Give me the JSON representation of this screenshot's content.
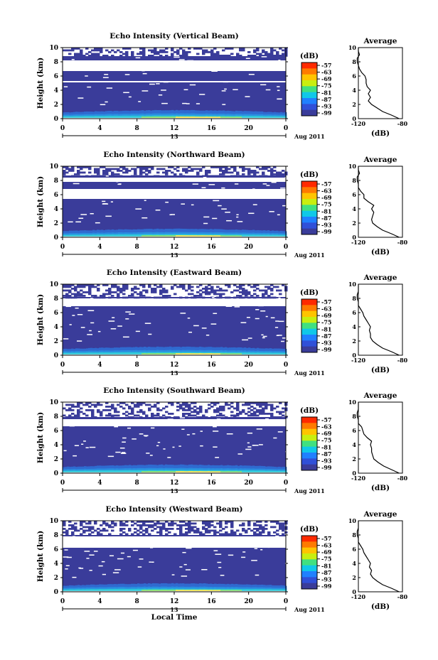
{
  "figure": {
    "date_label": "Aug 2011",
    "date_marker_label": "13",
    "xlabel_bottom": "Local Time",
    "colorbar_unit": "(dB)",
    "colorbar_ticks": [
      "-57",
      "-63",
      "-69",
      "-75",
      "-81",
      "-87",
      "-93",
      "-99"
    ],
    "colorbar_colors": [
      "#ff2a00",
      "#ff7a00",
      "#ffc400",
      "#c8ee10",
      "#40e080",
      "#10c8e8",
      "#2080ff",
      "#3050d8",
      "#3a3c9a"
    ],
    "main_xticks": [
      "0",
      "4",
      "8",
      "12",
      "16",
      "20",
      "0"
    ],
    "main_yticks": [
      "0",
      "2",
      "4",
      "6",
      "8",
      "10"
    ],
    "main_ylabel": "Height (km)",
    "avg_title": "Average",
    "avg_xticks": [
      "-120",
      "-80"
    ],
    "avg_xlabel": "(dB)",
    "colors": {
      "low_echo": "#3a3c9a",
      "no_data": "#ffffff",
      "ground_echo": [
        "#2a8ee0",
        "#2cc8d8",
        "#8ae060",
        "#ffe640"
      ]
    }
  },
  "chart_data": [
    {
      "type": "heatmap",
      "title": "Echo Intensity (Vertical Beam)",
      "xlabel": "",
      "ylabel": "Height (km)",
      "xlim": [
        0,
        24
      ],
      "ylim": [
        0,
        10
      ],
      "clim": [
        -99,
        -57
      ],
      "gap_layers_km": [
        [
          5.1,
          5.3
        ],
        [
          6.7,
          8.2
        ]
      ],
      "top_layer_km": [
        8.8,
        10
      ],
      "profile": {
        "title": "Average",
        "xlabel": "(dB)",
        "xlim": [
          -120,
          -80
        ],
        "height_km": [
          0,
          0.5,
          1,
          1.5,
          2,
          2.5,
          3,
          3.5,
          4,
          4.5,
          5,
          5.5,
          6,
          6.5,
          7,
          7.5,
          8,
          8.5,
          9,
          9.5,
          10
        ],
        "db": [
          -83,
          -90,
          -98,
          -103,
          -108,
          -111,
          -109,
          -111,
          -109,
          -112,
          -113,
          -113,
          -114,
          -117,
          -119,
          -120,
          -121,
          -121,
          -119,
          -120,
          -120
        ]
      }
    },
    {
      "type": "heatmap",
      "title": "Echo Intensity (Northward Beam)",
      "xlabel": "",
      "ylabel": "Height (km)",
      "xlim": [
        0,
        24
      ],
      "ylim": [
        0,
        10
      ],
      "clim": [
        -99,
        -57
      ],
      "gap_layers_km": [
        [
          5.4,
          6.8
        ],
        [
          7.8,
          8.4
        ]
      ],
      "top_layer_km": [
        8.7,
        10
      ],
      "profile": {
        "title": "Average",
        "xlabel": "(dB)",
        "xlim": [
          -120,
          -80
        ],
        "height_km": [
          0,
          0.5,
          1,
          1.5,
          2,
          2.5,
          3,
          3.5,
          4,
          4.5,
          5,
          5.5,
          6,
          6.5,
          7,
          7.5,
          8,
          8.5,
          9,
          9.5,
          10
        ],
        "db": [
          -83,
          -90,
          -98,
          -103,
          -107,
          -108,
          -107,
          -106,
          -108,
          -106,
          -111,
          -115,
          -115,
          -118,
          -120,
          -120,
          -121,
          -121,
          -119,
          -120,
          -120
        ]
      }
    },
    {
      "type": "heatmap",
      "title": "Echo Intensity (Eastward Beam)",
      "xlabel": "",
      "ylabel": "Height (km)",
      "xlim": [
        0,
        24
      ],
      "ylim": [
        0,
        10
      ],
      "clim": [
        -99,
        -57
      ],
      "gap_layers_km": [
        [
          6.9,
          8.0
        ]
      ],
      "top_layer_km": [
        8.2,
        10
      ],
      "profile": {
        "title": "Average",
        "xlabel": "(dB)",
        "xlim": [
          -120,
          -80
        ],
        "height_km": [
          0,
          0.5,
          1,
          1.5,
          2,
          2.5,
          3,
          3.5,
          4,
          4.5,
          5,
          5.5,
          6,
          6.5,
          7,
          7.5,
          8,
          8.5,
          9,
          9.5,
          10
        ],
        "db": [
          -83,
          -90,
          -98,
          -103,
          -107,
          -109,
          -109,
          -110,
          -109,
          -111,
          -113,
          -115,
          -116,
          -118,
          -120,
          -120,
          -121,
          -121,
          -120,
          -120,
          -120
        ]
      }
    },
    {
      "type": "heatmap",
      "title": "Echo Intensity (Southward Beam)",
      "xlabel": "",
      "ylabel": "Height (km)",
      "xlim": [
        0,
        24
      ],
      "ylim": [
        0,
        10
      ],
      "clim": [
        -99,
        -57
      ],
      "gap_layers_km": [
        [
          6.6,
          7.6
        ]
      ],
      "top_layer_km": [
        7.9,
        10
      ],
      "profile": {
        "title": "Average",
        "xlabel": "(dB)",
        "xlim": [
          -120,
          -80
        ],
        "height_km": [
          0,
          0.5,
          1,
          1.5,
          2,
          2.5,
          3,
          3.5,
          4,
          4.5,
          5,
          5.5,
          6,
          6.5,
          7,
          7.5,
          8,
          8.5,
          9,
          9.5,
          10
        ],
        "db": [
          -83,
          -90,
          -97,
          -102,
          -106,
          -107,
          -108,
          -108,
          -109,
          -108,
          -112,
          -115,
          -116,
          -117,
          -120,
          -120,
          -121,
          -121,
          -120,
          -120,
          -120
        ]
      }
    },
    {
      "type": "heatmap",
      "title": "Echo Intensity (Westward Beam)",
      "xlabel": "Local Time",
      "ylabel": "Height (km)",
      "xlim": [
        0,
        24
      ],
      "ylim": [
        0,
        10
      ],
      "clim": [
        -99,
        -57
      ],
      "gap_layers_km": [
        [
          6.2,
          7.8
        ]
      ],
      "top_layer_km": [
        8.0,
        10
      ],
      "profile": {
        "title": "Average",
        "xlabel": "(dB)",
        "xlim": [
          -120,
          -80
        ],
        "height_km": [
          0,
          0.5,
          1,
          1.5,
          2,
          2.5,
          3,
          3.5,
          4,
          4.5,
          5,
          5.5,
          6,
          6.5,
          7,
          7.5,
          8,
          8.5,
          9,
          9.5,
          10
        ],
        "db": [
          -83,
          -90,
          -98,
          -103,
          -107,
          -109,
          -108,
          -110,
          -109,
          -111,
          -113,
          -115,
          -116,
          -118,
          -120,
          -120,
          -121,
          -121,
          -120,
          -120,
          -120
        ]
      }
    }
  ]
}
